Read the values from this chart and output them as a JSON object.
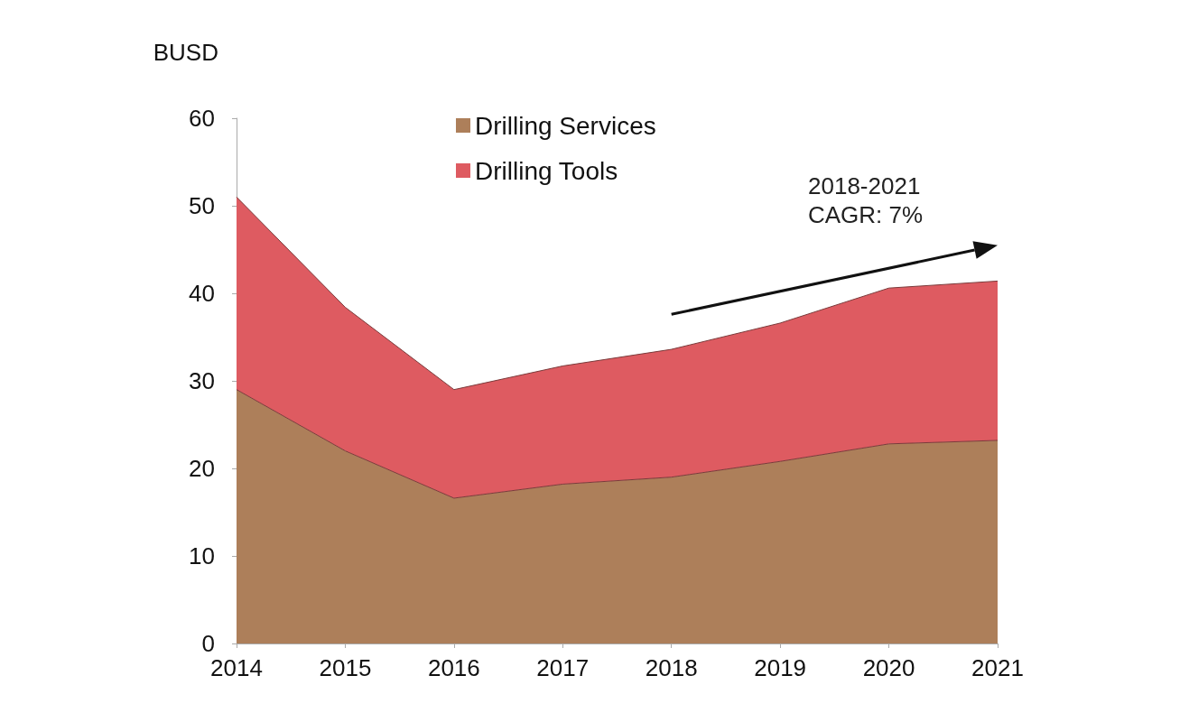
{
  "chart_data": {
    "type": "area",
    "stacked": true,
    "ylabel": "BUSD",
    "categories": [
      "2014",
      "2015",
      "2016",
      "2017",
      "2018",
      "2019",
      "2020",
      "2021"
    ],
    "series": [
      {
        "name": "Drilling Services",
        "color": "#ad7f5a",
        "values": [
          29,
          22,
          16.6,
          18.2,
          19,
          20.8,
          22.8,
          23.2
        ]
      },
      {
        "name": "Drilling Tools",
        "color": "#de5b61",
        "values": [
          22,
          16.4,
          12.4,
          13.5,
          14.6,
          15.8,
          17.8,
          18.2
        ]
      }
    ],
    "ylim": [
      0,
      60
    ],
    "yticks": [
      0,
      10,
      20,
      30,
      40,
      50,
      60
    ],
    "grid": false,
    "legend": "top",
    "annotations": [
      "2018-2021\nCAGR: 7%"
    ]
  }
}
